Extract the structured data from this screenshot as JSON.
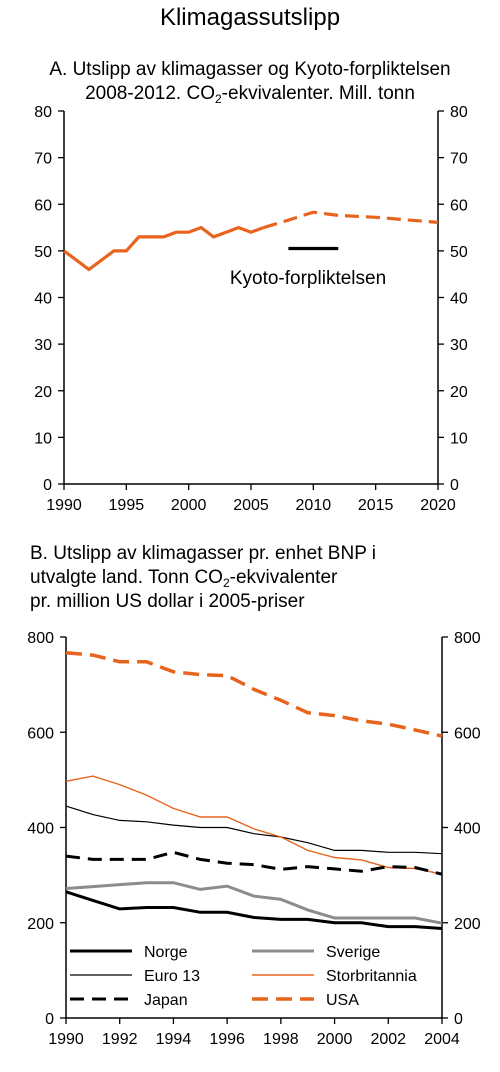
{
  "title": "Klimagassutslipp",
  "chart_a_title": {
    "line1": "A. Utslipp av klimagasser og Kyoto-forpliktelsen",
    "line2_pre": "2008-2012. CO",
    "line2_sub": "2",
    "line2_post": "-ekvivalenter. Mill. tonn"
  },
  "chart_b_title": {
    "line1": "B. Utslipp av klimagasser pr. enhet BNP i",
    "line2_pre": "utvalgte land. Tonn CO",
    "line2_sub": "2",
    "line2_post": "-ekvivalenter",
    "line3": "pr. million US dollar i 2005-priser"
  },
  "chart_data": [
    {
      "type": "line",
      "title": "A. Utslipp av klimagasser og Kyoto-forpliktelsen 2008-2012. CO2-ekvivalenter. Mill. tonn",
      "xlim": [
        1990,
        2020
      ],
      "ylim": [
        0,
        80
      ],
      "x_ticks": [
        1990,
        1995,
        2000,
        2005,
        2010,
        2015,
        2020
      ],
      "y_ticks": [
        0,
        10,
        20,
        30,
        40,
        50,
        60,
        70,
        80
      ],
      "right_axis_mirrored": true,
      "grid": false,
      "annotation": "Kyoto-forpliktelsen",
      "series": [
        {
          "style": "solid",
          "color": "#E8641E",
          "points": [
            [
              1990,
              50
            ],
            [
              1991,
              48
            ],
            [
              1992,
              46
            ],
            [
              1993,
              48
            ],
            [
              1994,
              50
            ],
            [
              1995,
              50
            ],
            [
              1996,
              53
            ],
            [
              1997,
              53
            ],
            [
              1998,
              53
            ],
            [
              1999,
              54
            ],
            [
              2000,
              54
            ],
            [
              2001,
              55
            ],
            [
              2002,
              53
            ],
            [
              2003,
              54
            ],
            [
              2004,
              55
            ],
            [
              2005,
              54
            ],
            [
              2006,
              55
            ]
          ]
        },
        {
          "style": "dashed",
          "color": "#E8641E",
          "points": [
            [
              2006,
              55
            ],
            [
              2008,
              56.6
            ],
            [
              2010,
              58.3
            ],
            [
              2012,
              57.6
            ],
            [
              2015,
              57.2
            ],
            [
              2020,
              56.1
            ]
          ]
        },
        {
          "style": "solid",
          "color": "#000000",
          "points": [
            [
              2008,
              50.5
            ],
            [
              2012,
              50.5
            ]
          ]
        }
      ]
    },
    {
      "type": "line",
      "title": "B. Utslipp av klimagasser pr. enhet BNP i utvalgte land. Tonn CO2-ekvivalenter pr. million US dollar i 2005-priser",
      "xlim": [
        1990,
        2004
      ],
      "ylim": [
        0,
        800
      ],
      "x_ticks": [
        1990,
        1992,
        1994,
        1996,
        1998,
        2000,
        2002,
        2004
      ],
      "y_ticks": [
        0,
        200,
        400,
        600,
        800
      ],
      "right_axis_mirrored": true,
      "grid": false,
      "legend_placement": "bottom",
      "x": [
        1990,
        1991,
        1992,
        1993,
        1994,
        1995,
        1996,
        1997,
        1998,
        1999,
        2000,
        2001,
        2002,
        2003,
        2004
      ],
      "series": [
        {
          "name": "Norge",
          "style": "solid",
          "color": "#000000",
          "width": 3,
          "values": [
            265,
            247,
            229,
            232,
            232,
            222,
            222,
            211,
            207,
            207,
            200,
            200,
            192,
            192,
            188
          ]
        },
        {
          "name": "Sverige",
          "style": "solid",
          "color": "#8C8C8C",
          "width": 3,
          "values": [
            272,
            276,
            280,
            284,
            284,
            270,
            277,
            256,
            249,
            227,
            210,
            210,
            210,
            210,
            199
          ]
        },
        {
          "name": "Euro 13",
          "style": "solid",
          "color": "#000000",
          "width": 1.2,
          "values": [
            445,
            427,
            415,
            412,
            405,
            400,
            400,
            387,
            380,
            368,
            352,
            352,
            348,
            348,
            345
          ]
        },
        {
          "name": "Storbritannia",
          "style": "solid",
          "color": "#E8641E",
          "width": 1.4,
          "values": [
            497,
            508,
            490,
            468,
            440,
            422,
            422,
            397,
            380,
            352,
            337,
            332,
            316,
            314,
            302
          ]
        },
        {
          "name": "Japan",
          "style": "dashed",
          "color": "#000000",
          "width": 3,
          "values": [
            340,
            333,
            333,
            333,
            348,
            333,
            325,
            322,
            312,
            318,
            313,
            308,
            318,
            316,
            302
          ]
        },
        {
          "name": "USA",
          "style": "dashed",
          "color": "#E8641E",
          "width": 3.5,
          "values": [
            767,
            762,
            748,
            748,
            727,
            721,
            719,
            690,
            667,
            641,
            635,
            624,
            617,
            605,
            592
          ]
        }
      ]
    }
  ]
}
